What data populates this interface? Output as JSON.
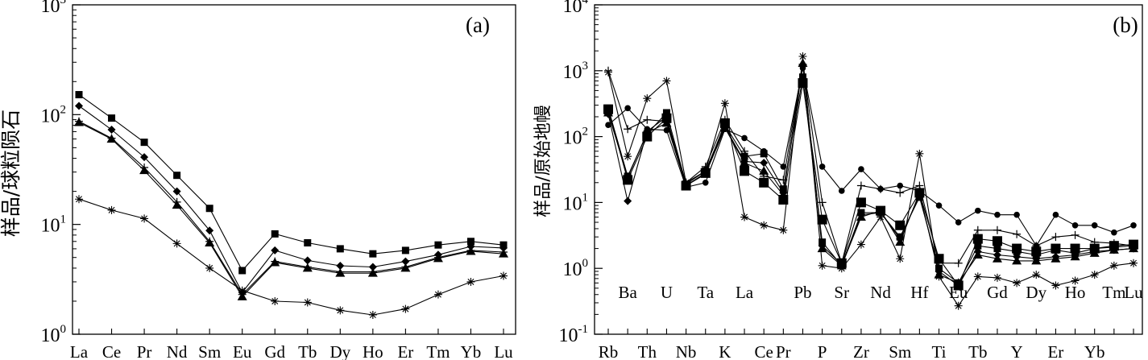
{
  "chart_data": [
    {
      "type": "line",
      "panel_label": "(a)",
      "ylabel": "样品/球粒陨石",
      "y_scale": "log",
      "ylim": [
        1,
        1000
      ],
      "y_ticks": [
        {
          "value": 1,
          "base": "10",
          "exp": "0"
        },
        {
          "value": 10,
          "base": "10",
          "exp": "1"
        },
        {
          "value": 100,
          "base": "10",
          "exp": "2"
        },
        {
          "value": 1000,
          "base": "10",
          "exp": "3"
        }
      ],
      "categories": [
        "La",
        "Ce",
        "Pr",
        "Nd",
        "Sm",
        "Eu",
        "Gd",
        "Tb",
        "Dy",
        "Ho",
        "Er",
        "Tm",
        "Yb",
        "Lu"
      ],
      "series": [
        {
          "marker": "square",
          "values": [
            152,
            93,
            56,
            28,
            14,
            3.8,
            8.2,
            6.8,
            6.0,
            5.4,
            5.8,
            6.5,
            7.0,
            6.5
          ]
        },
        {
          "marker": "diamond",
          "values": [
            120,
            73,
            41,
            20,
            8.8,
            2.4,
            5.8,
            4.7,
            4.2,
            4.1,
            4.6,
            5.3,
            6.3,
            6.1
          ]
        },
        {
          "marker": "triangle",
          "values": [
            85,
            60,
            31,
            15,
            6.8,
            2.2,
            4.5,
            4.0,
            3.6,
            3.6,
            4.0,
            4.9,
            5.7,
            5.4
          ]
        },
        {
          "marker": "plus",
          "values": [
            87,
            61,
            33,
            16,
            7.0,
            2.3,
            4.6,
            4.1,
            3.7,
            3.7,
            4.1,
            5.0,
            5.8,
            5.6
          ]
        },
        {
          "marker": "star",
          "values": [
            17,
            13.5,
            11.3,
            6.7,
            4.0,
            2.5,
            2.0,
            1.95,
            1.65,
            1.5,
            1.7,
            2.3,
            3.0,
            3.4
          ]
        }
      ]
    },
    {
      "type": "line",
      "panel_label": "(b)",
      "ylabel": "样品/原始地幔",
      "y_scale": "log",
      "ylim": [
        0.1,
        10000
      ],
      "y_ticks": [
        {
          "value": 0.1,
          "base": "10",
          "exp": "-1"
        },
        {
          "value": 1,
          "base": "10",
          "exp": "0"
        },
        {
          "value": 10,
          "base": "10",
          "exp": "1"
        },
        {
          "value": 100,
          "base": "10",
          "exp": "2"
        },
        {
          "value": 1000,
          "base": "10",
          "exp": "3"
        },
        {
          "value": 10000,
          "base": "10",
          "exp": "4"
        }
      ],
      "categories": [
        "Rb",
        "Ba",
        "Th",
        "U",
        "Nb",
        "Ta",
        "K",
        "La",
        "Ce",
        "Pr",
        "Pb",
        "P",
        "Sr",
        "Zr",
        "Nd",
        "Sm",
        "Hf",
        "Ti",
        "Eu",
        "Tb",
        "Gd",
        "Y",
        "Dy",
        "Er",
        "Ho",
        "Yb",
        "Tm",
        "Lu"
      ],
      "category_rows": [
        "bottom",
        "top",
        "bottom",
        "top",
        "bottom",
        "top",
        "bottom",
        "top",
        "bottom",
        "bottom",
        "top",
        "bottom",
        "top",
        "bottom",
        "top",
        "bottom",
        "top",
        "bottom",
        "top",
        "bottom",
        "top",
        "bottom",
        "top",
        "bottom",
        "top",
        "bottom",
        "top",
        "top"
      ],
      "series": [
        {
          "marker": "circle",
          "values": [
            150,
            270,
            130,
            125,
            17,
            20,
            130,
            95,
            60,
            35,
            1100,
            35,
            15,
            32,
            16,
            18,
            15,
            9,
            5,
            7.5,
            6.5,
            6.5,
            2.2,
            6.5,
            4.5,
            4.5,
            3.5,
            4.5
          ]
        },
        {
          "marker": "bigsquare",
          "values": [
            260,
            22,
            100,
            190,
            18,
            28,
            160,
            30,
            20,
            11,
            650,
            5.5,
            1.2,
            10,
            7.5,
            4.5,
            14,
            1.4,
            0.55,
            2.8,
            2.6,
            2.0,
            1.8,
            2.0,
            2.0,
            2.0,
            2.2,
            2.3
          ]
        },
        {
          "marker": "square",
          "values": [
            270,
            25,
            110,
            230,
            19,
            30,
            150,
            50,
            55,
            16,
            800,
            2.5,
            1.1,
            7,
            7.0,
            3.0,
            12,
            1.0,
            0.6,
            2.2,
            2.0,
            1.8,
            1.6,
            1.9,
            1.7,
            2.0,
            2.1,
            2.2
          ]
        },
        {
          "marker": "diamond",
          "values": [
            220,
            10.5,
            120,
            200,
            18,
            28,
            140,
            42,
            40,
            14,
            1200,
            2.2,
            1.15,
            6.5,
            7.0,
            2.8,
            13,
            0.9,
            0.55,
            1.8,
            1.6,
            1.5,
            1.4,
            1.5,
            1.6,
            1.8,
            1.9,
            2.0
          ]
        },
        {
          "marker": "triangle",
          "values": [
            230,
            24,
            115,
            160,
            18,
            27,
            135,
            40,
            30,
            13,
            1300,
            2.0,
            1.1,
            6,
            7.5,
            2.5,
            14,
            0.8,
            0.6,
            1.6,
            1.4,
            1.3,
            1.3,
            1.4,
            1.5,
            1.7,
            1.9,
            2.0
          ]
        },
        {
          "marker": "plus",
          "values": [
            1000,
            130,
            180,
            170,
            20,
            35,
            180,
            60,
            25,
            22,
            1250,
            10,
            1.2,
            18,
            16,
            14,
            18,
            1.2,
            1.2,
            3.8,
            3.8,
            3.3,
            2.2,
            3.0,
            3.2,
            2.5,
            2.4,
            2.2
          ]
        },
        {
          "marker": "star",
          "values": [
            950,
            50,
            380,
            700,
            20,
            30,
            320,
            6,
            4.5,
            3.8,
            1650,
            1.1,
            1.0,
            2.3,
            6.0,
            1.4,
            55,
            0.75,
            0.27,
            0.75,
            0.72,
            0.6,
            0.8,
            0.55,
            0.65,
            0.8,
            1.1,
            1.2
          ]
        }
      ]
    }
  ]
}
